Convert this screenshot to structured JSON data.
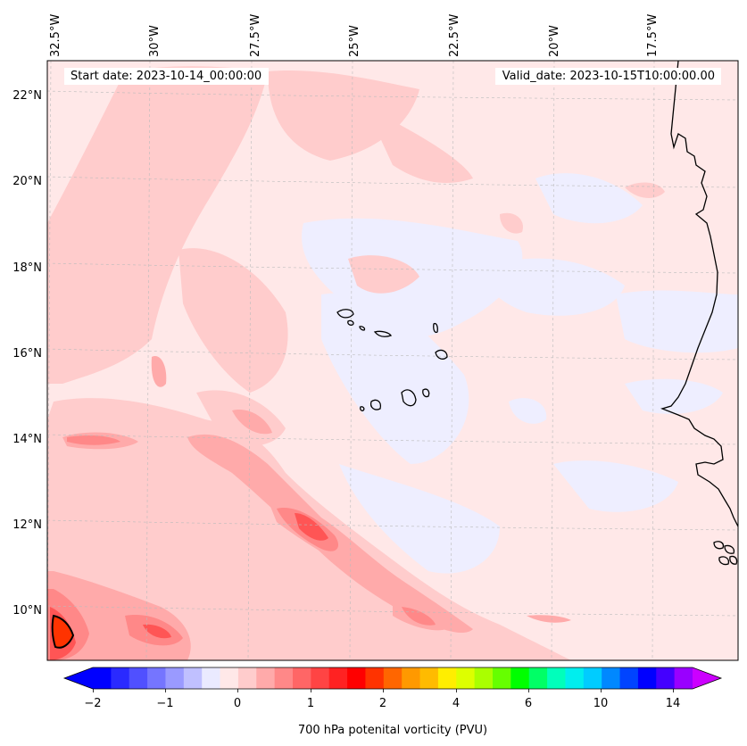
{
  "header": {
    "start_date": "Start date: 2023-10-14_00:00:00",
    "valid_date": "Valid_date: 2023-10-15T10:00:00.00"
  },
  "map": {
    "longitude_labels": [
      "32.5°W",
      "30°W",
      "27.5°W",
      "25°W",
      "22.5°W",
      "20°W",
      "17.5°W"
    ],
    "latitude_labels": [
      "22°N",
      "20°N",
      "18°N",
      "16°N",
      "14°N",
      "12°N",
      "10°N"
    ]
  },
  "colorbar": {
    "title": "700 hPa potenital vorticity (PVU)",
    "tick_labels": [
      "−2",
      "−1",
      "0",
      "1",
      "2",
      "4",
      "6",
      "10",
      "14"
    ],
    "colors": [
      "#0000ff",
      "#2a2aff",
      "#5050ff",
      "#7575ff",
      "#9a9aff",
      "#c0c0ff",
      "#eaeaff",
      "#ffe8e8",
      "#ffcccc",
      "#ffaaaa",
      "#ff8888",
      "#ff6666",
      "#ff4444",
      "#ff2222",
      "#ff0000",
      "#ff3300",
      "#ff6600",
      "#ff9900",
      "#ffbb00",
      "#ffee00",
      "#ddff00",
      "#aaff00",
      "#66ff00",
      "#00ff00",
      "#00ff66",
      "#00ffbb",
      "#00eeee",
      "#00ccff",
      "#0088ff",
      "#0044ff",
      "#0000ff",
      "#4400ff",
      "#9900ff"
    ],
    "under_color": "#0000ff",
    "over_color": "#cc00ff"
  }
}
